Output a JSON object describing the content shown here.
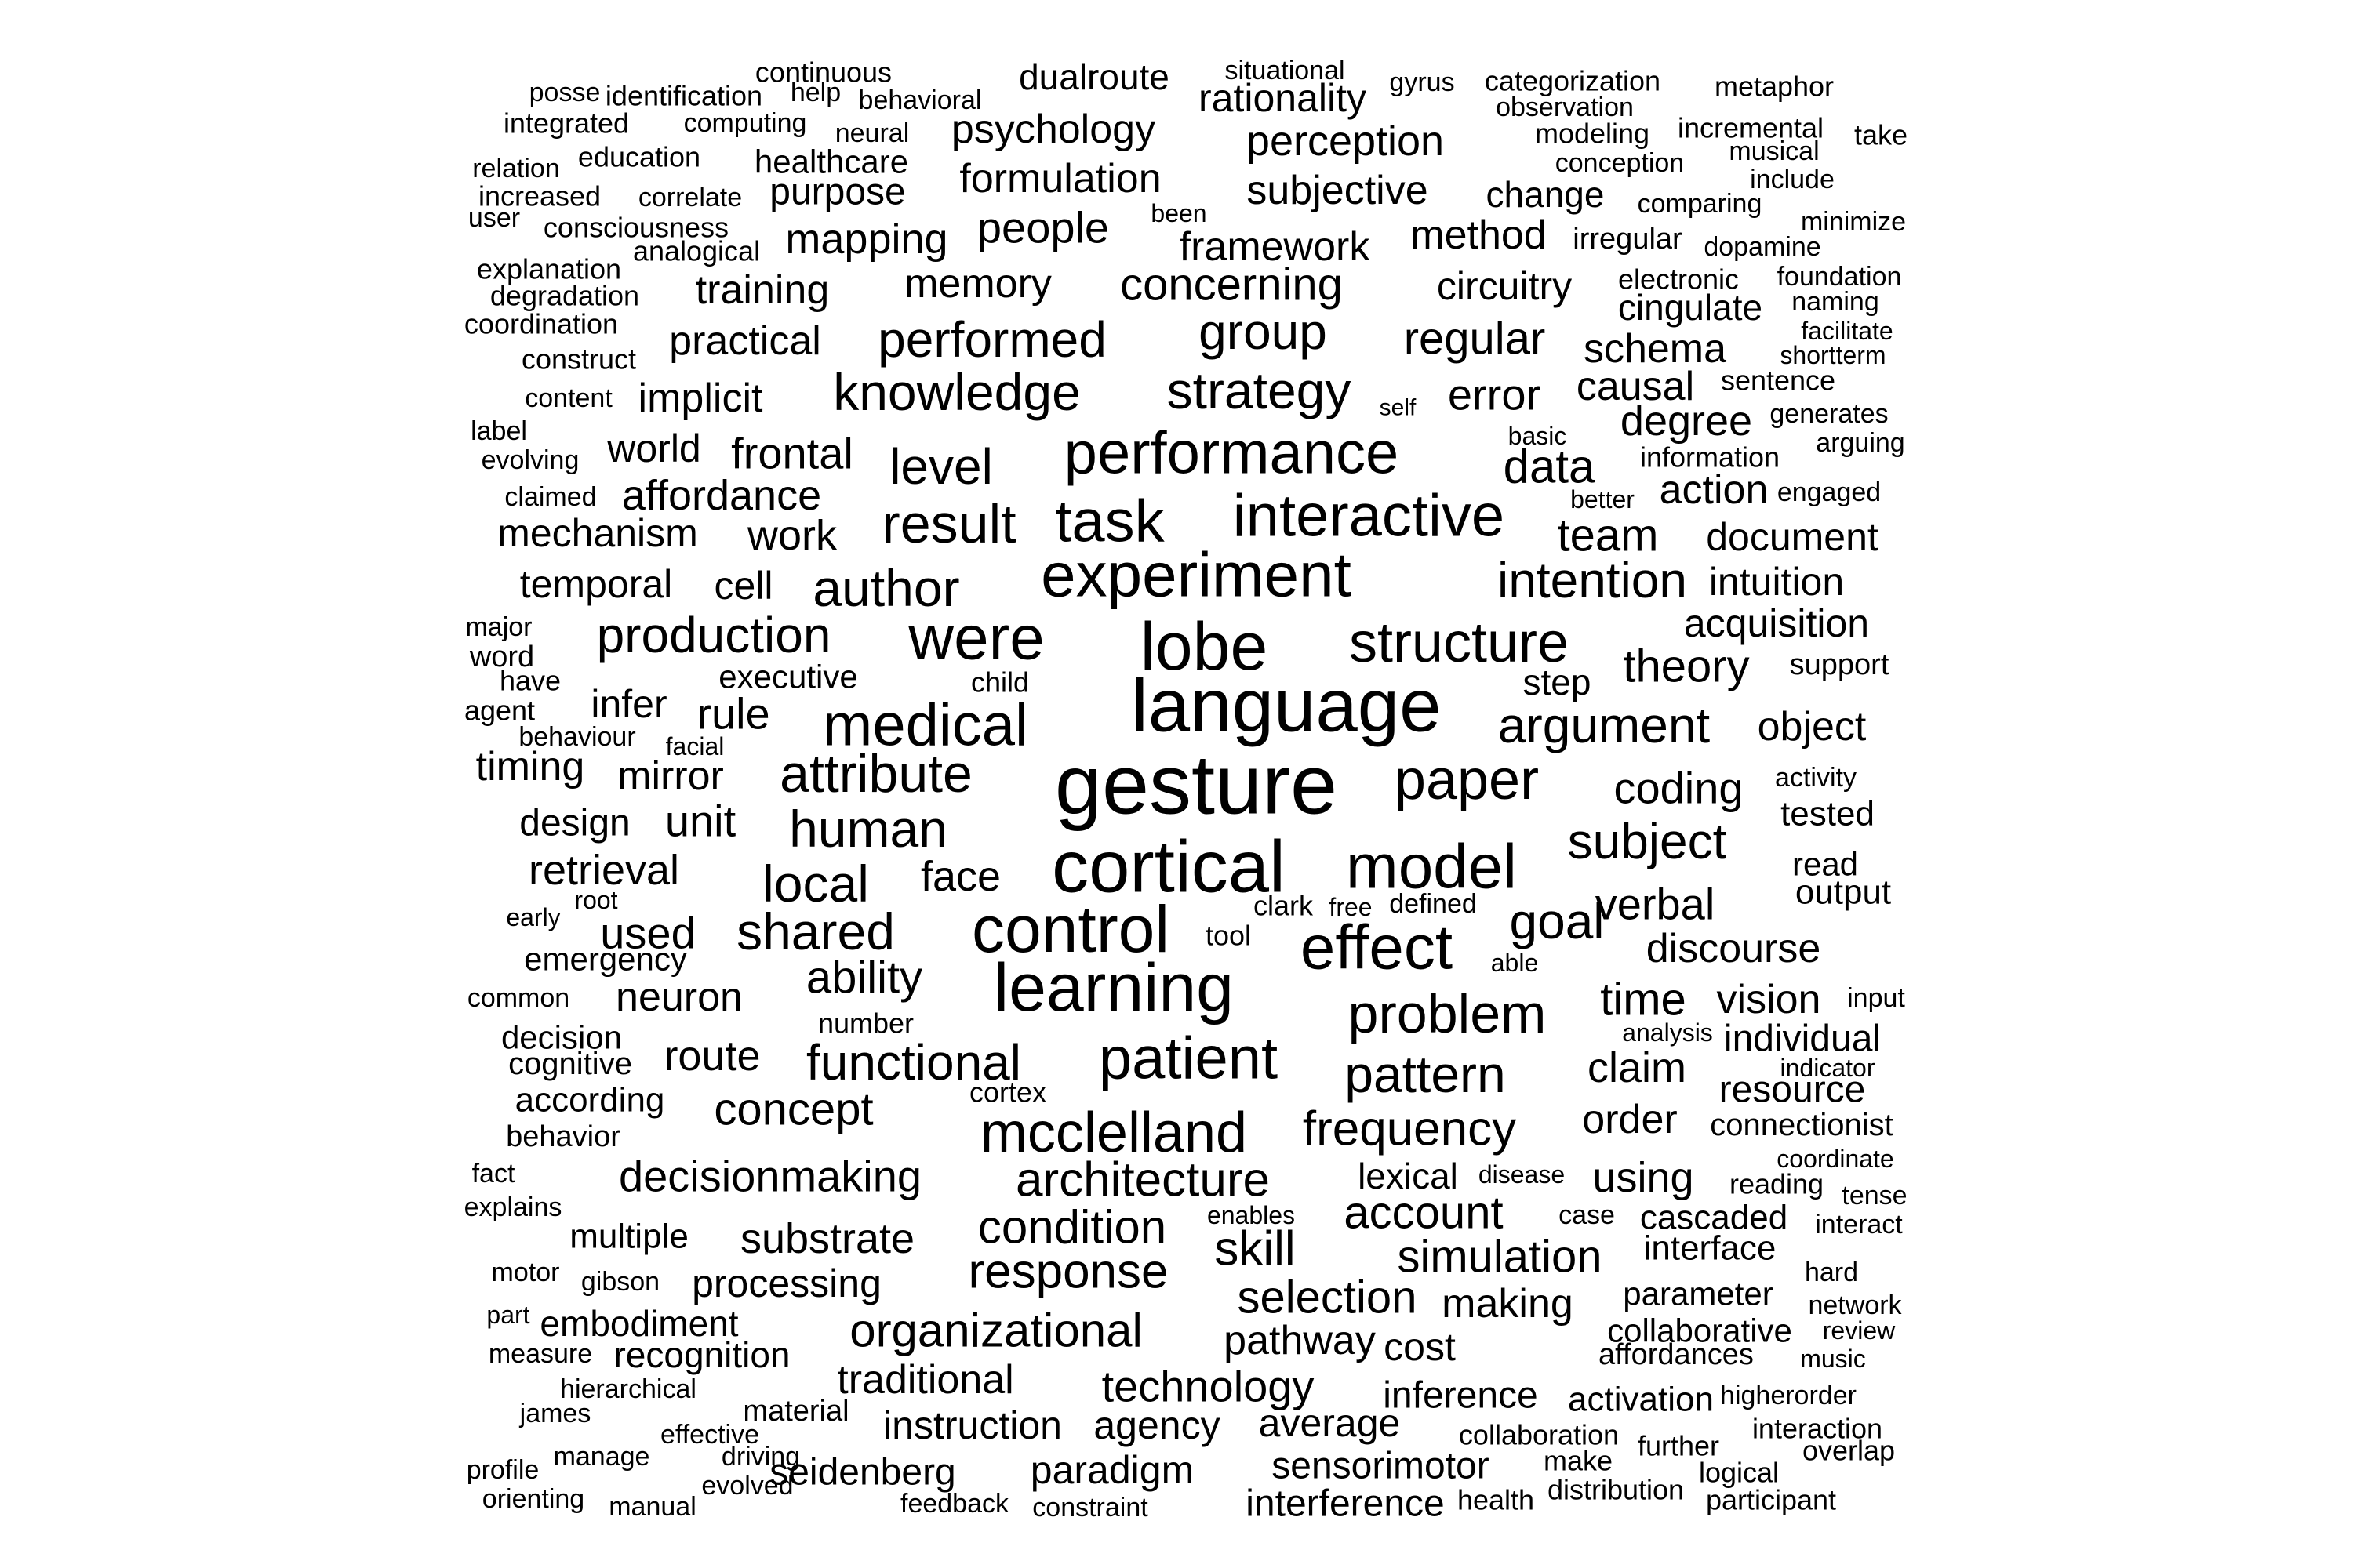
{
  "words": [
    "gesture",
    "language",
    "lobe",
    "cortical",
    "model",
    "medical",
    "experiment",
    "learning",
    "control",
    "effect",
    "patient",
    "were",
    "performance",
    "interactive",
    "task",
    "result",
    "structure",
    "problem",
    "mcclelland",
    "author",
    "pattern",
    "attribute",
    "paper",
    "production",
    "human",
    "functional",
    "intention",
    "strategy",
    "knowledge",
    "subject",
    "architecture",
    "frequency",
    "argument",
    "shared",
    "local",
    "goal",
    "performed",
    "group",
    "level",
    "response",
    "organizational",
    "condition",
    "theory",
    "concerning",
    "data",
    "decisionmaking",
    "simulation",
    "selection",
    "account",
    "skill",
    "concept",
    "verbal",
    "time",
    "discourse",
    "regular",
    "ability",
    "framework",
    "subjective",
    "people",
    "technology",
    "team",
    "document",
    "coding",
    "processing",
    "neuron",
    "pathway",
    "mechanism",
    "route",
    "error",
    "affordance",
    "substrate",
    "psychology",
    "formulation",
    "perception",
    "rationality",
    "memory",
    "mapping",
    "implicit",
    "practical",
    "traditional",
    "work",
    "frontal",
    "retrieval",
    "face",
    "used",
    "unit",
    "mirror",
    "rule",
    "timing",
    "claim",
    "order",
    "using",
    "vision",
    "individual",
    "degree",
    "schema",
    "causal",
    "action",
    "acquisition",
    "intuition",
    "resource",
    "instruction",
    "paradigm",
    "sensorimotor",
    "interference",
    "inference",
    "agency",
    "average",
    "making",
    "cost",
    "seidenberg",
    "world",
    "cell",
    "temporal",
    "infer",
    "training",
    "method",
    "circuitry",
    "cingulate",
    "design",
    "dualroute",
    "purpose",
    "lexical",
    "embodiment",
    "recognition",
    "multiple",
    "object",
    "collaborative",
    "cascaded",
    "interface",
    "parameter",
    "connectionist",
    "activation",
    "step",
    "change",
    "healthcare",
    "according",
    "decision",
    "cognitive",
    "emergency",
    "executive",
    "continuous",
    "categorization",
    "rationality_",
    "identification",
    "integrated",
    "education",
    "increased",
    "consciousness",
    "analogical",
    "explanation",
    "degradation",
    "coordination",
    "construct",
    "content",
    "label",
    "evolving",
    "claimed",
    "major",
    "word",
    "have",
    "agent",
    "behaviour",
    "facial",
    "child",
    "activity",
    "tested",
    "read",
    "output",
    "clark",
    "free",
    "defined",
    "tool",
    "able",
    "common",
    "number",
    "cortex",
    "input",
    "analysis",
    "indicator",
    "behavior",
    "fact",
    "explains",
    "disease",
    "enables",
    "reading",
    "coordinate",
    "tense",
    "case",
    "interact",
    "motor",
    "gibson",
    "part",
    "measure",
    "hierarchical",
    "james",
    "effective",
    "material",
    "manage",
    "driving",
    "profile",
    "orienting",
    "manual",
    "evolved",
    "feedback",
    "constraint",
    "health",
    "distribution",
    "participant",
    "logical",
    "overlap",
    "interaction",
    "further",
    "make",
    "collaboration",
    "higherorder",
    "music",
    "review",
    "network",
    "hard",
    "affordances",
    "situational",
    "gyrus",
    "metaphor",
    "observation",
    "modeling",
    "incremental",
    "musical",
    "take",
    "include",
    "conception",
    "comparing",
    "minimize",
    "dopamine",
    "irregular",
    "electronic",
    "foundation",
    "naming",
    "facilitate",
    "shortterm",
    "sentence",
    "generates",
    "arguing",
    "engaged",
    "better",
    "information",
    "basic",
    "self",
    "support",
    "posse",
    "help",
    "behavioral",
    "computing",
    "neural",
    "relation",
    "correlate",
    "user",
    "been",
    "early",
    "root"
  ]
}
